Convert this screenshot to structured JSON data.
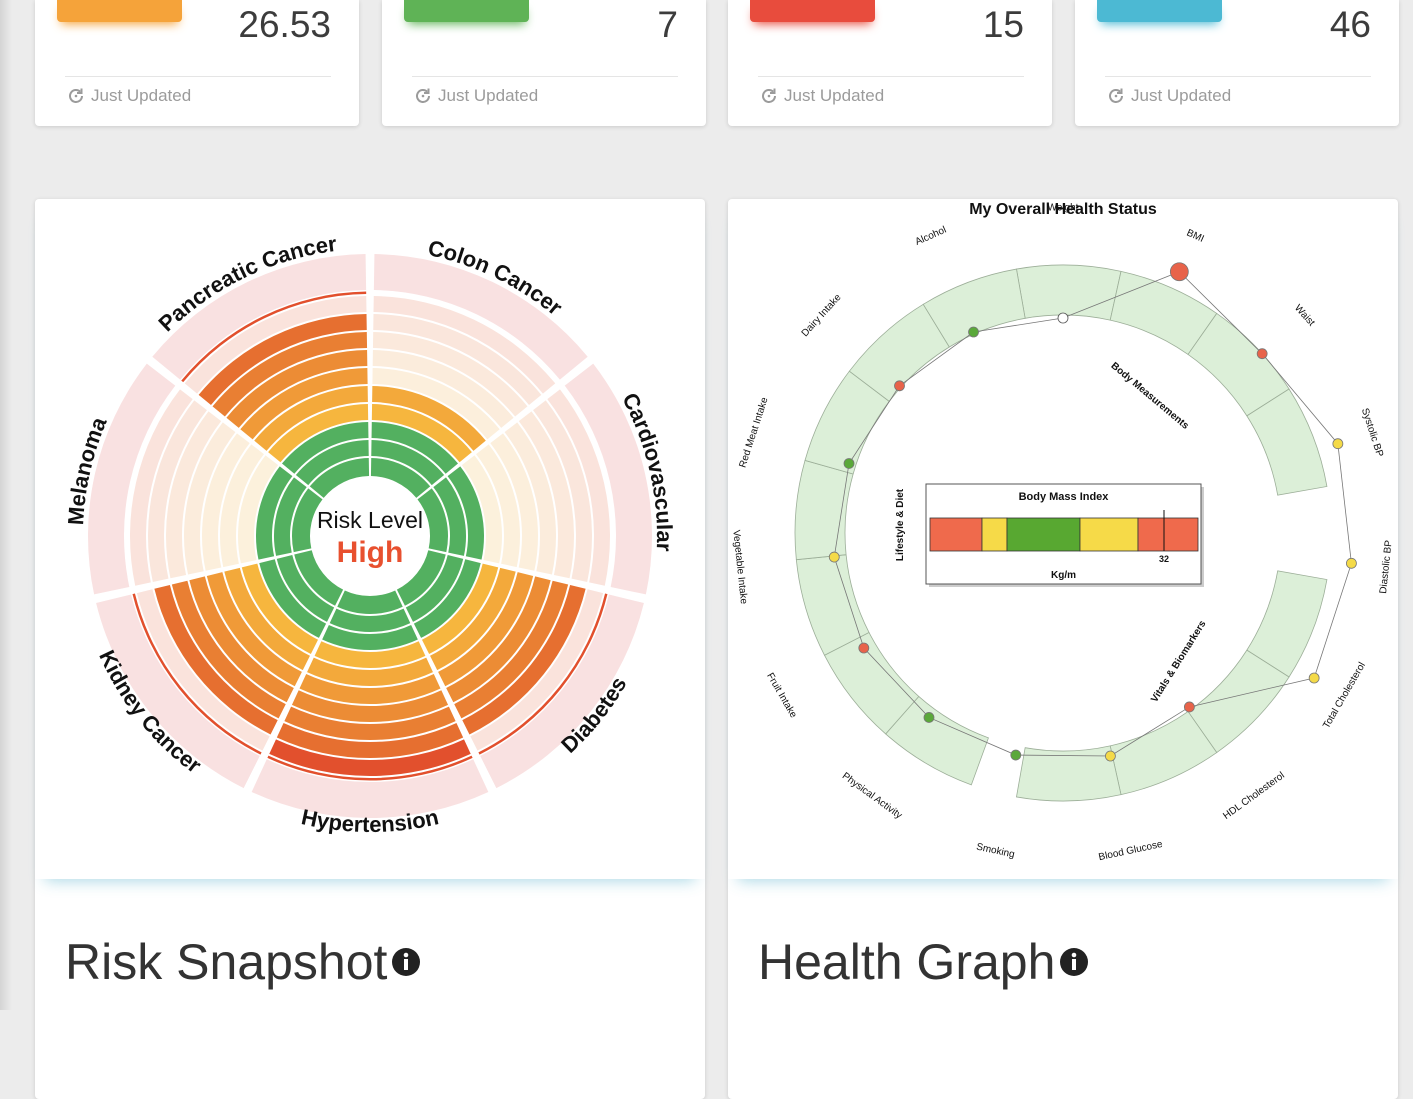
{
  "stat_cards": [
    {
      "value": "26.53",
      "footer": "Just Updated",
      "color": "#f5a33a"
    },
    {
      "value": "7",
      "footer": "Just Updated",
      "color": "#5fb356"
    },
    {
      "value": "15",
      "footer": "Just Updated",
      "color": "#e84c3d"
    },
    {
      "value": "46",
      "footer": "Just Updated",
      "color": "#4cb9d3"
    }
  ],
  "risk_snapshot": {
    "title": "Risk Snapshot",
    "center_label": "Risk Level",
    "center_value": "High",
    "center_value_color": "#e8502f",
    "segments": [
      {
        "label": "Colon Cancer",
        "level": 5
      },
      {
        "label": "Cardiovascular",
        "level": 3
      },
      {
        "label": "Diabetes",
        "level": 9
      },
      {
        "label": "Hypertension",
        "level": 10
      },
      {
        "label": "Kidney Cancer",
        "level": 9
      },
      {
        "label": "Melanoma",
        "level": 3
      },
      {
        "label": "Pancreatic Cancer",
        "level": 9
      }
    ]
  },
  "health_graph": {
    "title": "Health Graph",
    "chart_title": "My Overall Health Status",
    "groups": [
      {
        "label": "Body Measurements"
      },
      {
        "label": "Vitals & Biomarkers"
      },
      {
        "label": "Lifestyle & Diet"
      }
    ],
    "metrics": [
      {
        "label": "Weight",
        "status": "white"
      },
      {
        "label": "BMI",
        "status": "red"
      },
      {
        "label": "Waist",
        "status": "red"
      },
      {
        "label": "Systolic BP",
        "status": "yellow"
      },
      {
        "label": "Diastolic BP",
        "status": "yellow"
      },
      {
        "label": "Total Cholesterol",
        "status": "yellow"
      },
      {
        "label": "HDL Cholesterol",
        "status": "red"
      },
      {
        "label": "Blood Glucose",
        "status": "yellow"
      },
      {
        "label": "Smoking",
        "status": "green"
      },
      {
        "label": "Physical Activity",
        "status": "green"
      },
      {
        "label": "Fruit Intake",
        "status": "red"
      },
      {
        "label": "Vegetable Intake",
        "status": "yellow"
      },
      {
        "label": "Red Meat Intake",
        "status": "green"
      },
      {
        "label": "Dairy Intake",
        "status": "red"
      },
      {
        "label": "Alcohol",
        "status": "green"
      }
    ],
    "bmi_panel": {
      "title": "Body Mass Index",
      "unit": "Kg/m",
      "value": "32",
      "bands": [
        "#ef6a4c",
        "#f6da48",
        "#58a831",
        "#f6da48",
        "#ef6a4c"
      ]
    }
  }
}
